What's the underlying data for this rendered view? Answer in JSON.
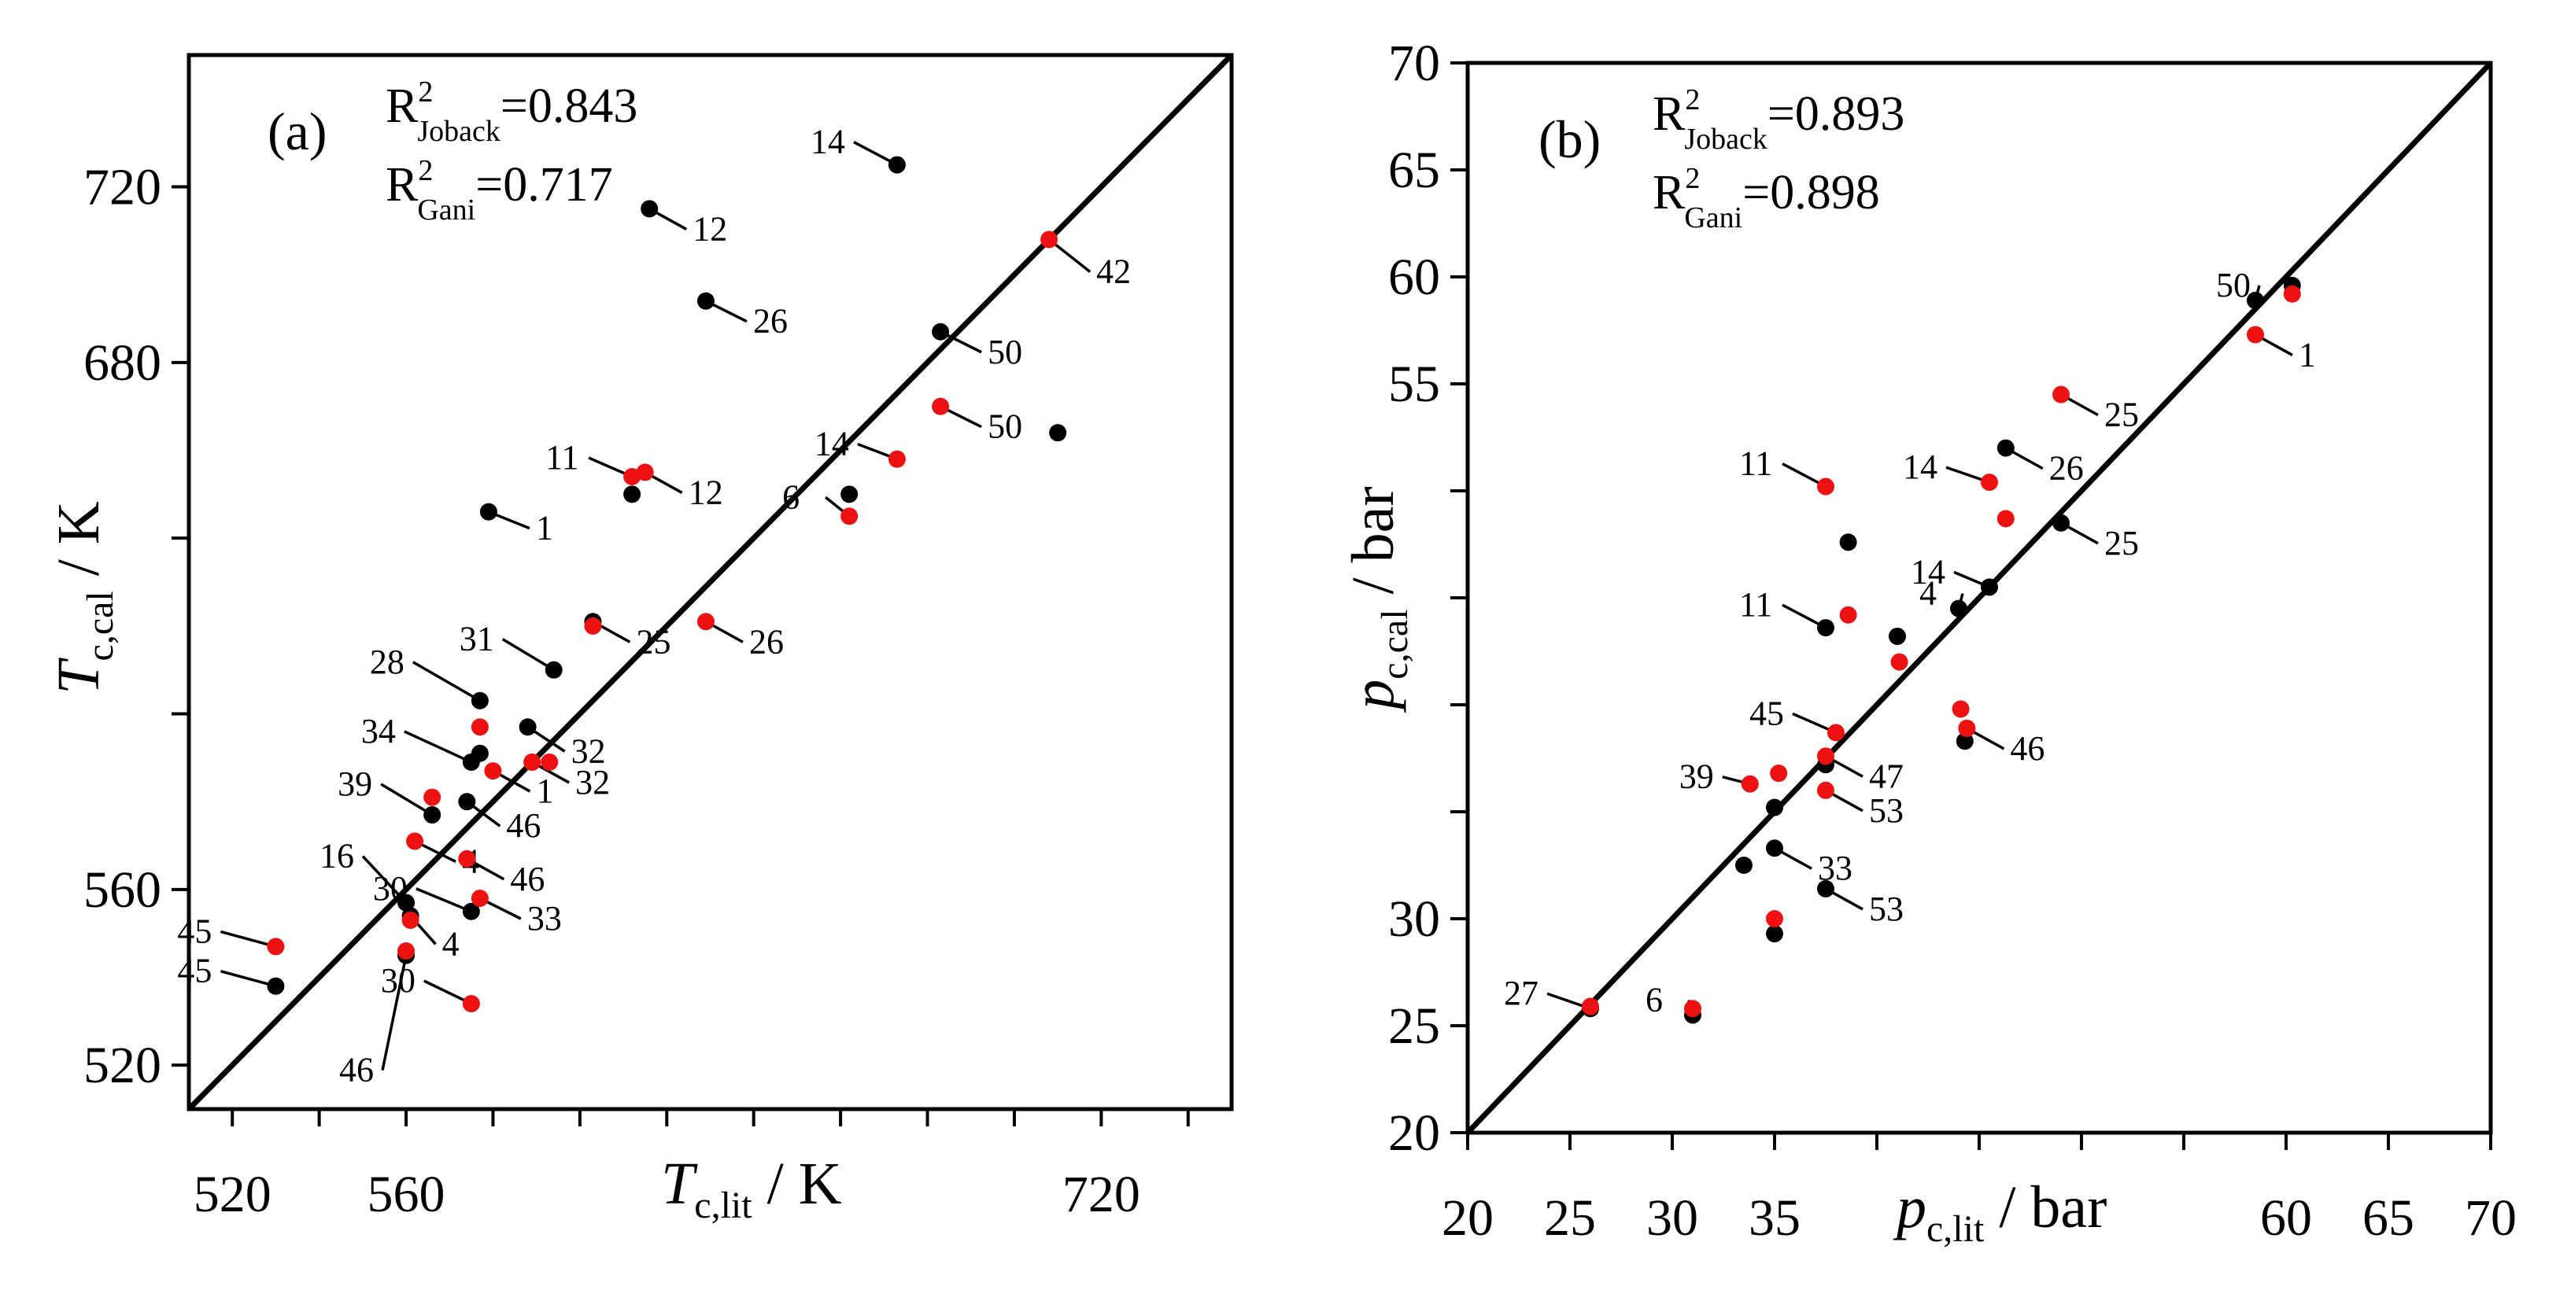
{
  "colors": {
    "joback": "#000000",
    "gani": "#ee1111"
  },
  "chart_data": [
    {
      "type": "scatter",
      "panel_label": "(a)",
      "xlabel_main": "T",
      "xlabel_sub": "c,lit",
      "xlabel_unit": " / K",
      "ylabel_main": "T",
      "ylabel_sub": "c,cal",
      "ylabel_unit": " / K",
      "xlim": [
        510,
        750
      ],
      "ylim": [
        510,
        750
      ],
      "xticks": [
        520,
        540,
        560,
        580,
        600,
        620,
        640,
        660,
        680,
        700,
        720,
        740
      ],
      "xtick_labels": [
        "520",
        "",
        "560",
        "",
        "",
        "",
        "",
        "",
        "",
        "",
        "720",
        ""
      ],
      "yticks": [
        520,
        560,
        600,
        640,
        680,
        720
      ],
      "ytick_labels": [
        "520",
        "560",
        "",
        "",
        "680",
        "720"
      ],
      "r2": [
        {
          "main": "R",
          "sup": "2",
          "sub": "Joback",
          "value": "=0.843"
        },
        {
          "main": "R",
          "sup": "2",
          "sub": "Gani",
          "value": "=0.717"
        }
      ],
      "series": [
        {
          "name": "Joback",
          "color": "#000000",
          "points": [
            {
              "x": 530,
              "y": 538,
              "label": "45"
            },
            {
              "x": 560,
              "y": 545,
              "label": "46"
            },
            {
              "x": 561,
              "y": 554,
              "label": "4"
            },
            {
              "x": 560,
              "y": 557,
              "label": "16"
            },
            {
              "x": 566,
              "y": 577,
              "label": "39"
            },
            {
              "x": 575,
              "y": 555,
              "label": "30"
            },
            {
              "x": 574,
              "y": 580,
              "label": "46"
            },
            {
              "x": 575,
              "y": 589,
              "label": "34"
            },
            {
              "x": 577,
              "y": 591,
              "label": ""
            },
            {
              "x": 577,
              "y": 603,
              "label": "28"
            },
            {
              "x": 588,
              "y": 597,
              "label": "32"
            },
            {
              "x": 594,
              "y": 610,
              "label": "31"
            },
            {
              "x": 603,
              "y": 621,
              "label": "25"
            },
            {
              "x": 579,
              "y": 646,
              "label": "1"
            },
            {
              "x": 612,
              "y": 650,
              "label": ""
            },
            {
              "x": 662,
              "y": 650,
              "label": ""
            },
            {
              "x": 616,
              "y": 715,
              "label": "12"
            },
            {
              "x": 629,
              "y": 694,
              "label": "26"
            },
            {
              "x": 673,
              "y": 725,
              "label": "14"
            },
            {
              "x": 683,
              "y": 687,
              "label": "50"
            },
            {
              "x": 710,
              "y": 664,
              "label": ""
            }
          ]
        },
        {
          "name": "Gani",
          "color": "#ee1111",
          "points": [
            {
              "x": 530,
              "y": 547,
              "label": "45"
            },
            {
              "x": 560,
              "y": 546,
              "label": ""
            },
            {
              "x": 561,
              "y": 553,
              "label": ""
            },
            {
              "x": 562,
              "y": 571,
              "label": "4"
            },
            {
              "x": 566,
              "y": 581,
              "label": ""
            },
            {
              "x": 574,
              "y": 567,
              "label": "46"
            },
            {
              "x": 575,
              "y": 534,
              "label": "30"
            },
            {
              "x": 577,
              "y": 558,
              "label": "33"
            },
            {
              "x": 577,
              "y": 597,
              "label": ""
            },
            {
              "x": 580,
              "y": 587,
              "label": "1"
            },
            {
              "x": 589,
              "y": 589,
              "label": "32"
            },
            {
              "x": 593,
              "y": 589,
              "label": ""
            },
            {
              "x": 603,
              "y": 620,
              "label": ""
            },
            {
              "x": 612,
              "y": 654,
              "label": "11"
            },
            {
              "x": 615,
              "y": 655,
              "label": "12"
            },
            {
              "x": 629,
              "y": 621,
              "label": "26"
            },
            {
              "x": 662,
              "y": 645,
              "label": "6"
            },
            {
              "x": 673,
              "y": 658,
              "label": "14"
            },
            {
              "x": 683,
              "y": 670,
              "label": "50"
            },
            {
              "x": 708,
              "y": 708,
              "label": "42"
            }
          ]
        }
      ]
    },
    {
      "type": "scatter",
      "panel_label": "(b)",
      "xlabel_main": "p",
      "xlabel_sub": "c,lit",
      "xlabel_unit": " / bar",
      "ylabel_main": "p",
      "ylabel_sub": "c,cal",
      "ylabel_unit": " / bar",
      "xlim": [
        20,
        70
      ],
      "ylim": [
        20,
        70
      ],
      "xticks": [
        20,
        25,
        30,
        35,
        40,
        45,
        50,
        55,
        60,
        65,
        70
      ],
      "xtick_labels": [
        "20",
        "25",
        "30",
        "35",
        "",
        "",
        "",
        "",
        "60",
        "65",
        "70"
      ],
      "yticks": [
        20,
        25,
        30,
        35,
        40,
        45,
        50,
        55,
        60,
        65,
        70
      ],
      "ytick_labels": [
        "20",
        "25",
        "30",
        "",
        "",
        "",
        "",
        "55",
        "60",
        "65",
        "70"
      ],
      "r2": [
        {
          "main": "R",
          "sup": "2",
          "sub": "Joback",
          "value": "=0.893"
        },
        {
          "main": "R",
          "sup": "2",
          "sub": "Gani",
          "value": "=0.898"
        }
      ],
      "series": [
        {
          "name": "Joback",
          "color": "#000000",
          "points": [
            {
              "x": 26,
              "y": 25.8,
              "label": "27"
            },
            {
              "x": 31,
              "y": 25.5,
              "label": "6"
            },
            {
              "x": 35,
              "y": 29.3,
              "label": ""
            },
            {
              "x": 33.5,
              "y": 32.5,
              "label": ""
            },
            {
              "x": 35,
              "y": 33.3,
              "label": "33"
            },
            {
              "x": 37.5,
              "y": 31.4,
              "label": "53"
            },
            {
              "x": 35,
              "y": 35.2,
              "label": ""
            },
            {
              "x": 37.5,
              "y": 37.2,
              "label": ""
            },
            {
              "x": 38.6,
              "y": 47.6,
              "label": ""
            },
            {
              "x": 37.5,
              "y": 43.6,
              "label": "11"
            },
            {
              "x": 41,
              "y": 43.2,
              "label": ""
            },
            {
              "x": 44,
              "y": 44.5,
              "label": "4"
            },
            {
              "x": 45.5,
              "y": 45.5,
              "label": "14"
            },
            {
              "x": 44.3,
              "y": 38.3,
              "label": ""
            },
            {
              "x": 46.3,
              "y": 52,
              "label": "26"
            },
            {
              "x": 49,
              "y": 48.5,
              "label": "25"
            },
            {
              "x": 58.5,
              "y": 58.9,
              "label": "50"
            },
            {
              "x": 60.3,
              "y": 59.6,
              "label": ""
            }
          ]
        },
        {
          "name": "Gani",
          "color": "#ee1111",
          "points": [
            {
              "x": 26,
              "y": 25.9,
              "label": ""
            },
            {
              "x": 31,
              "y": 25.8,
              "label": ""
            },
            {
              "x": 35,
              "y": 30,
              "label": ""
            },
            {
              "x": 33.8,
              "y": 36.3,
              "label": "39"
            },
            {
              "x": 35.2,
              "y": 36.8,
              "label": ""
            },
            {
              "x": 37.5,
              "y": 36,
              "label": "53"
            },
            {
              "x": 37.5,
              "y": 37.6,
              "label": "47"
            },
            {
              "x": 38,
              "y": 38.7,
              "label": "45"
            },
            {
              "x": 38.6,
              "y": 44.2,
              "label": ""
            },
            {
              "x": 37.5,
              "y": 50.2,
              "label": "11"
            },
            {
              "x": 41.1,
              "y": 42,
              "label": ""
            },
            {
              "x": 44.1,
              "y": 39.8,
              "label": ""
            },
            {
              "x": 44.4,
              "y": 38.9,
              "label": "46"
            },
            {
              "x": 45.5,
              "y": 50.4,
              "label": "14"
            },
            {
              "x": 46.3,
              "y": 48.7,
              "label": ""
            },
            {
              "x": 49,
              "y": 54.5,
              "label": "25"
            },
            {
              "x": 58.5,
              "y": 57.3,
              "label": "1"
            },
            {
              "x": 60.3,
              "y": 59.2,
              "label": ""
            }
          ]
        }
      ]
    }
  ]
}
